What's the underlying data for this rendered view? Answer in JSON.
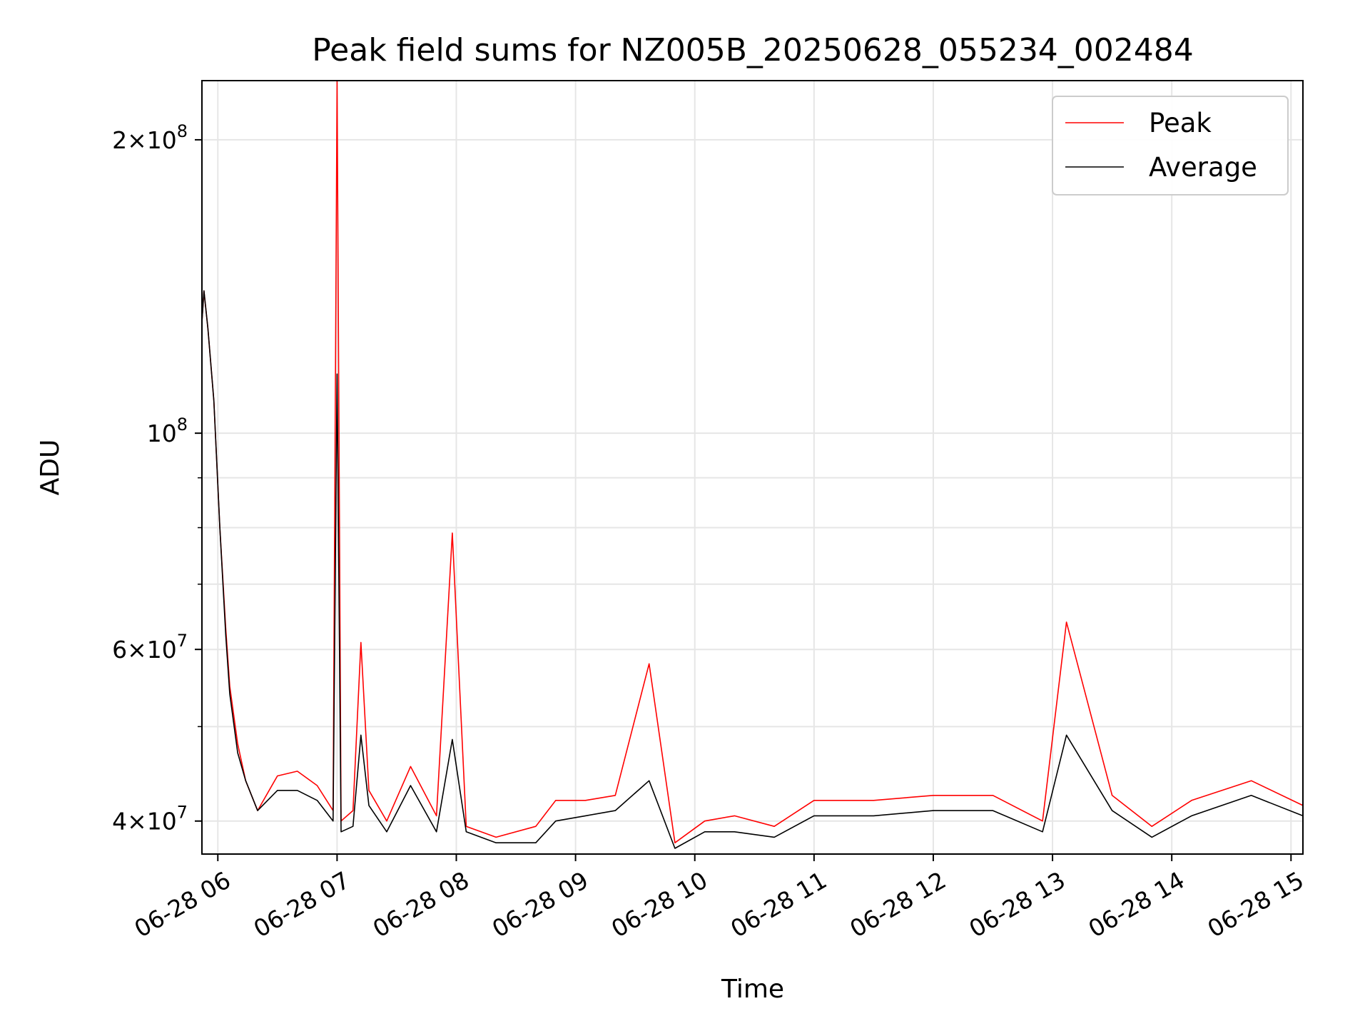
{
  "chart_data": {
    "type": "line",
    "title": "Peak field sums for NZ005B_20250628_055234_002484",
    "xlabel": "Time",
    "ylabel": "ADU",
    "x_axis": {
      "kind": "datetime",
      "range": [
        "2025-06-28 05:52",
        "2025-06-28 15:06"
      ],
      "ticks": [
        {
          "value": "2025-06-28 06:00",
          "label": "06-28 06"
        },
        {
          "value": "2025-06-28 07:00",
          "label": "06-28 07"
        },
        {
          "value": "2025-06-28 08:00",
          "label": "06-28 08"
        },
        {
          "value": "2025-06-28 09:00",
          "label": "06-28 09"
        },
        {
          "value": "2025-06-28 10:00",
          "label": "06-28 10"
        },
        {
          "value": "2025-06-28 11:00",
          "label": "06-28 11"
        },
        {
          "value": "2025-06-28 12:00",
          "label": "06-28 12"
        },
        {
          "value": "2025-06-28 13:00",
          "label": "06-28 13"
        },
        {
          "value": "2025-06-28 14:00",
          "label": "06-28 14"
        },
        {
          "value": "2025-06-28 15:00",
          "label": "06-28 15"
        }
      ]
    },
    "y_axis": {
      "scale": "log",
      "range": [
        37000000,
        230000000
      ],
      "major_ticks": [
        {
          "value": 40000000,
          "base": "4",
          "exp": "7"
        },
        {
          "value": 60000000,
          "base": "6",
          "exp": "7"
        },
        {
          "value": 100000000,
          "base": "",
          "exp": "8"
        },
        {
          "value": 200000000,
          "base": "2",
          "exp": "8"
        }
      ],
      "minor_ticks": [
        50000000,
        70000000,
        80000000,
        90000000
      ]
    },
    "grid": true,
    "legend": {
      "placement": "top-right"
    },
    "series": [
      {
        "name": "Peak",
        "color": "#ff0000",
        "points": [
          [
            "2025-06-28 05:52",
            130000000.0
          ],
          [
            "2025-06-28 05:53",
            140000000.0
          ],
          [
            "2025-06-28 05:55",
            128000000.0
          ],
          [
            "2025-06-28 05:58",
            108000000.0
          ],
          [
            "2025-06-28 06:01",
            80000000.0
          ],
          [
            "2025-06-28 06:04",
            63000000.0
          ],
          [
            "2025-06-28 06:06",
            55000000.0
          ],
          [
            "2025-06-28 06:10",
            48000000.0
          ],
          [
            "2025-06-28 06:14",
            44000000.0
          ],
          [
            "2025-06-28 06:20",
            41000000.0
          ],
          [
            "2025-06-28 06:30",
            44500000.0
          ],
          [
            "2025-06-28 06:40",
            45000000.0
          ],
          [
            "2025-06-28 06:50",
            43500000.0
          ],
          [
            "2025-06-28 06:58",
            41000000.0
          ],
          [
            "2025-06-28 07:00",
            230000000.0
          ],
          [
            "2025-06-28 07:02",
            40000000.0
          ],
          [
            "2025-06-28 07:08",
            41000000.0
          ],
          [
            "2025-06-28 07:12",
            61000000.0
          ],
          [
            "2025-06-28 07:16",
            43000000.0
          ],
          [
            "2025-06-28 07:25",
            40000000.0
          ],
          [
            "2025-06-28 07:37",
            45500000.0
          ],
          [
            "2025-06-28 07:50",
            40500000.0
          ],
          [
            "2025-06-28 07:58",
            79000000.0
          ],
          [
            "2025-06-28 08:05",
            39500000.0
          ],
          [
            "2025-06-28 08:20",
            38500000.0
          ],
          [
            "2025-06-28 08:40",
            39500000.0
          ],
          [
            "2025-06-28 08:50",
            42000000.0
          ],
          [
            "2025-06-28 09:05",
            42000000.0
          ],
          [
            "2025-06-28 09:20",
            42500000.0
          ],
          [
            "2025-06-28 09:37",
            58000000.0
          ],
          [
            "2025-06-28 09:50",
            38000000.0
          ],
          [
            "2025-06-28 10:05",
            40000000.0
          ],
          [
            "2025-06-28 10:20",
            40500000.0
          ],
          [
            "2025-06-28 10:40",
            39500000.0
          ],
          [
            "2025-06-28 11:00",
            42000000.0
          ],
          [
            "2025-06-28 11:30",
            42000000.0
          ],
          [
            "2025-06-28 12:00",
            42500000.0
          ],
          [
            "2025-06-28 12:30",
            42500000.0
          ],
          [
            "2025-06-28 12:55",
            40000000.0
          ],
          [
            "2025-06-28 13:07",
            64000000.0
          ],
          [
            "2025-06-28 13:30",
            42500000.0
          ],
          [
            "2025-06-28 13:50",
            39500000.0
          ],
          [
            "2025-06-28 14:10",
            42000000.0
          ],
          [
            "2025-06-28 14:40",
            44000000.0
          ],
          [
            "2025-06-28 15:06",
            41500000.0
          ]
        ]
      },
      {
        "name": "Average",
        "color": "#000000",
        "points": [
          [
            "2025-06-28 05:52",
            130000000.0
          ],
          [
            "2025-06-28 05:53",
            140000000.0
          ],
          [
            "2025-06-28 05:55",
            128000000.0
          ],
          [
            "2025-06-28 05:58",
            108000000.0
          ],
          [
            "2025-06-28 06:01",
            80000000.0
          ],
          [
            "2025-06-28 06:04",
            62000000.0
          ],
          [
            "2025-06-28 06:06",
            54000000.0
          ],
          [
            "2025-06-28 06:10",
            47000000.0
          ],
          [
            "2025-06-28 06:14",
            44000000.0
          ],
          [
            "2025-06-28 06:20",
            41000000.0
          ],
          [
            "2025-06-28 06:30",
            43000000.0
          ],
          [
            "2025-06-28 06:40",
            43000000.0
          ],
          [
            "2025-06-28 06:50",
            42000000.0
          ],
          [
            "2025-06-28 06:58",
            40000000.0
          ],
          [
            "2025-06-28 07:00",
            115000000.0
          ],
          [
            "2025-06-28 07:02",
            39000000.0
          ],
          [
            "2025-06-28 07:08",
            39500000.0
          ],
          [
            "2025-06-28 07:12",
            49000000.0
          ],
          [
            "2025-06-28 07:16",
            41500000.0
          ],
          [
            "2025-06-28 07:25",
            39000000.0
          ],
          [
            "2025-06-28 07:37",
            43500000.0
          ],
          [
            "2025-06-28 07:50",
            39000000.0
          ],
          [
            "2025-06-28 07:58",
            48500000.0
          ],
          [
            "2025-06-28 08:05",
            39000000.0
          ],
          [
            "2025-06-28 08:20",
            38000000.0
          ],
          [
            "2025-06-28 08:40",
            38000000.0
          ],
          [
            "2025-06-28 08:50",
            40000000.0
          ],
          [
            "2025-06-28 09:05",
            40500000.0
          ],
          [
            "2025-06-28 09:20",
            41000000.0
          ],
          [
            "2025-06-28 09:37",
            44000000.0
          ],
          [
            "2025-06-28 09:50",
            37500000.0
          ],
          [
            "2025-06-28 10:05",
            39000000.0
          ],
          [
            "2025-06-28 10:20",
            39000000.0
          ],
          [
            "2025-06-28 10:40",
            38500000.0
          ],
          [
            "2025-06-28 11:00",
            40500000.0
          ],
          [
            "2025-06-28 11:30",
            40500000.0
          ],
          [
            "2025-06-28 12:00",
            41000000.0
          ],
          [
            "2025-06-28 12:30",
            41000000.0
          ],
          [
            "2025-06-28 12:55",
            39000000.0
          ],
          [
            "2025-06-28 13:07",
            49000000.0
          ],
          [
            "2025-06-28 13:30",
            41000000.0
          ],
          [
            "2025-06-28 13:50",
            38500000.0
          ],
          [
            "2025-06-28 14:10",
            40500000.0
          ],
          [
            "2025-06-28 14:40",
            42500000.0
          ],
          [
            "2025-06-28 15:06",
            40500000.0
          ]
        ]
      }
    ]
  }
}
